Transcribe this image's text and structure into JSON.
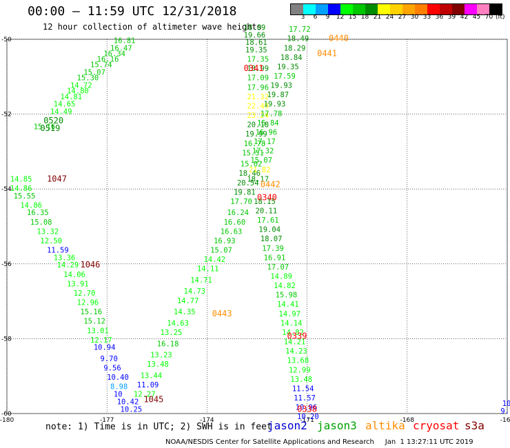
{
  "header": {
    "title": "00:00 – 11:59 UTC 12/31/2018",
    "subtitle": "12 hour collection of altimeter wave heights"
  },
  "color_scale": {
    "labels": [
      "3",
      "6",
      "9",
      "12",
      "15",
      "18",
      "21",
      "24",
      "27",
      "30",
      "33",
      "36",
      "39",
      "42",
      "45",
      "70"
    ],
    "unit": "(ft)",
    "colors": [
      "#808080",
      "#00ffff",
      "#00a0ff",
      "#0000ff",
      "#00ff00",
      "#00c800",
      "#008c00",
      "#ffff00",
      "#ffd200",
      "#ffa500",
      "#ff8000",
      "#ff0000",
      "#c00000",
      "#800000",
      "#ff00ff",
      "#ff80c0",
      "#000000"
    ]
  },
  "note": "note: 1) Time is in UTC; 2) SWH is in feet",
  "satellites": [
    {
      "name": "jason2",
      "color": "#0000cc"
    },
    {
      "name": "jason3",
      "color": "#00a000"
    },
    {
      "name": "altika",
      "color": "#ff8c00"
    },
    {
      "name": "cryosat",
      "color": "#ff0000"
    },
    {
      "name": "s3a",
      "color": "#800000"
    }
  ],
  "footer": "NOAA/NESDIS Center for Satellite Applications and Research     Jan  1 13:27:11 UTC 2019",
  "chart_data": {
    "type": "scatter",
    "title": "12 hour collection of altimeter wave heights",
    "xlabel": "",
    "ylabel": "",
    "xlim": [
      -180,
      -165
    ],
    "ylim": [
      -60,
      -50
    ],
    "xticks": [
      -180,
      -177,
      -174,
      -171,
      -168,
      -165
    ],
    "xtick_labels": [
      "-180",
      "-177",
      "-174",
      "-171",
      "-168",
      "-165"
    ],
    "yticks": [
      -50,
      -52,
      -54,
      -56,
      -58,
      -60
    ],
    "ytick_labels": [
      "-50",
      "-52",
      "-54",
      "-56",
      "-58",
      "-60"
    ],
    "grid": true,
    "time_labels": [
      {
        "text": "0520",
        "lon": -178.9,
        "lat": -52.25,
        "color": "#008c00"
      },
      {
        "text": "0519",
        "lon": -179.0,
        "lat": -52.45,
        "color": "#008c00"
      },
      {
        "text": "1047",
        "lon": -178.8,
        "lat": -53.8,
        "color": "#800000"
      },
      {
        "text": "1046",
        "lon": -177.8,
        "lat": -56.1,
        "color": "#800000"
      },
      {
        "text": "1045",
        "lon": -175.9,
        "lat": -59.7,
        "color": "#800000"
      },
      {
        "text": "0443",
        "lon": -173.85,
        "lat": -57.4,
        "color": "#ff8c00"
      },
      {
        "text": "0442",
        "lon": -172.4,
        "lat": -53.95,
        "color": "#ff8c00"
      },
      {
        "text": "0441",
        "lon": -170.7,
        "lat": -50.45,
        "color": "#ff8c00"
      },
      {
        "text": "0440",
        "lon": -170.35,
        "lat": -50.05,
        "color": "#ff8c00"
      },
      {
        "text": "0341",
        "lon": -172.9,
        "lat": -50.85,
        "color": "#ff0000"
      },
      {
        "text": "0340",
        "lon": -172.5,
        "lat": -54.3,
        "color": "#ff0000"
      },
      {
        "text": "0339",
        "lon": -171.6,
        "lat": -58.0,
        "color": "#ff0000"
      },
      {
        "text": "0338",
        "lon": -171.3,
        "lat": -59.95,
        "color": "#ff0000"
      }
    ],
    "series": [
      {
        "name": "track-nw",
        "points": [
          {
            "lon": -176.8,
            "lat": -50.1,
            "swh": 16.81
          },
          {
            "lon": -176.9,
            "lat": -50.3,
            "swh": 16.47
          },
          {
            "lon": -177.1,
            "lat": -50.45,
            "swh": 16.34
          },
          {
            "lon": -177.3,
            "lat": -50.6,
            "swh": 16.16
          },
          {
            "lon": -177.5,
            "lat": -50.75,
            "swh": 15.74
          },
          {
            "lon": -177.7,
            "lat": -50.95,
            "swh": 15.07
          },
          {
            "lon": -177.9,
            "lat": -51.1,
            "swh": 15.3
          },
          {
            "lon": -178.1,
            "lat": -51.3,
            "swh": 14.72
          },
          {
            "lon": -178.2,
            "lat": -51.45,
            "swh": 14.8
          },
          {
            "lon": -178.4,
            "lat": -51.6,
            "swh": 14.81
          },
          {
            "lon": -178.6,
            "lat": -51.8,
            "swh": 14.65
          },
          {
            "lon": -178.7,
            "lat": -52.0,
            "swh": 14.49
          },
          {
            "lon": -179.2,
            "lat": -52.4,
            "swh": 15.16
          }
        ]
      },
      {
        "name": "track-w",
        "points": [
          {
            "lon": -179.9,
            "lat": -53.8,
            "swh": 14.85
          },
          {
            "lon": -179.9,
            "lat": -54.05,
            "swh": 14.86
          },
          {
            "lon": -179.8,
            "lat": -54.25,
            "swh": 15.55
          },
          {
            "lon": -179.6,
            "lat": -54.5,
            "swh": 14.86
          },
          {
            "lon": -179.4,
            "lat": -54.7,
            "swh": 16.35
          },
          {
            "lon": -179.3,
            "lat": -54.95,
            "swh": 15.08
          },
          {
            "lon": -179.1,
            "lat": -55.2,
            "swh": 13.32
          },
          {
            "lon": -179.0,
            "lat": -55.45,
            "swh": 12.5
          },
          {
            "lon": -178.8,
            "lat": -55.7,
            "swh": 11.59
          },
          {
            "lon": -178.6,
            "lat": -55.9,
            "swh": 13.36
          },
          {
            "lon": -178.5,
            "lat": -56.1,
            "swh": 14.29
          },
          {
            "lon": -178.3,
            "lat": -56.35,
            "swh": 14.06
          },
          {
            "lon": -178.2,
            "lat": -56.6,
            "swh": 13.91
          },
          {
            "lon": -178.0,
            "lat": -56.85,
            "swh": 12.7
          },
          {
            "lon": -177.9,
            "lat": -57.1,
            "swh": 12.96
          },
          {
            "lon": -177.8,
            "lat": -57.35,
            "swh": 15.16
          },
          {
            "lon": -177.7,
            "lat": -57.6,
            "swh": 15.12
          },
          {
            "lon": -177.6,
            "lat": -57.85,
            "swh": 13.01
          },
          {
            "lon": -177.5,
            "lat": -58.1,
            "swh": 12.17
          },
          {
            "lon": -177.4,
            "lat": -58.3,
            "swh": 10.94
          },
          {
            "lon": -177.2,
            "lat": -58.6,
            "swh": 9.7
          },
          {
            "lon": -177.1,
            "lat": -58.85,
            "swh": 9.56
          },
          {
            "lon": -177.0,
            "lat": -59.1,
            "swh": 10.4
          },
          {
            "lon": -176.9,
            "lat": -59.35,
            "swh": 8.98
          },
          {
            "lon": -176.8,
            "lat": -59.55,
            "swh": 10.0
          },
          {
            "lon": -176.7,
            "lat": -59.75,
            "swh": 10.42
          },
          {
            "lon": -176.6,
            "lat": -59.95,
            "swh": 10.25
          }
        ]
      },
      {
        "name": "track-center-asc",
        "points": [
          {
            "lon": -176.2,
            "lat": -59.55,
            "swh": 12.27
          },
          {
            "lon": -176.1,
            "lat": -59.3,
            "swh": 11.09
          },
          {
            "lon": -176.0,
            "lat": -59.05,
            "swh": 13.44
          },
          {
            "lon": -175.8,
            "lat": -58.75,
            "swh": 13.48
          },
          {
            "lon": -175.7,
            "lat": -58.5,
            "swh": 13.23
          },
          {
            "lon": -175.5,
            "lat": -58.2,
            "swh": 16.18
          },
          {
            "lon": -175.4,
            "lat": -57.9,
            "swh": 13.25
          },
          {
            "lon": -175.2,
            "lat": -57.65,
            "swh": 14.63
          },
          {
            "lon": -175.0,
            "lat": -57.35,
            "swh": 14.35
          },
          {
            "lon": -174.9,
            "lat": -57.05,
            "swh": 14.77
          },
          {
            "lon": -174.7,
            "lat": -56.8,
            "swh": 14.73
          },
          {
            "lon": -174.5,
            "lat": -56.5,
            "swh": 14.71
          },
          {
            "lon": -174.3,
            "lat": -56.2,
            "swh": 14.11
          },
          {
            "lon": -174.1,
            "lat": -55.95,
            "swh": 14.42
          },
          {
            "lon": -173.9,
            "lat": -55.7,
            "swh": 15.07
          },
          {
            "lon": -173.8,
            "lat": -55.45,
            "swh": 16.93
          },
          {
            "lon": -173.6,
            "lat": -55.2,
            "swh": 16.63
          },
          {
            "lon": -173.5,
            "lat": -54.95,
            "swh": 16.6
          },
          {
            "lon": -173.4,
            "lat": -54.7,
            "swh": 16.24
          },
          {
            "lon": -173.3,
            "lat": -54.4,
            "swh": 17.7
          },
          {
            "lon": -173.2,
            "lat": -54.15,
            "swh": 19.81
          },
          {
            "lon": -173.1,
            "lat": -53.9,
            "swh": 20.54
          },
          {
            "lon": -173.05,
            "lat": -53.65,
            "swh": 18.46
          },
          {
            "lon": -173.0,
            "lat": -53.4,
            "swh": 15.02
          },
          {
            "lon": -172.95,
            "lat": -53.1,
            "swh": 15.51
          },
          {
            "lon": -172.9,
            "lat": -52.85,
            "swh": 16.78
          },
          {
            "lon": -172.85,
            "lat": -52.6,
            "swh": 19.99
          },
          {
            "lon": -172.8,
            "lat": -52.35,
            "swh": 20.18
          },
          {
            "lon": -172.8,
            "lat": -52.1,
            "swh": 23.24
          },
          {
            "lon": -172.8,
            "lat": -51.85,
            "swh": 22.49
          },
          {
            "lon": -172.8,
            "lat": -51.6,
            "swh": 21.32
          },
          {
            "lon": -172.8,
            "lat": -51.35,
            "swh": 17.96
          },
          {
            "lon": -172.8,
            "lat": -51.1,
            "swh": 17.09
          },
          {
            "lon": -172.8,
            "lat": -50.85,
            "swh": 18.99
          },
          {
            "lon": -172.8,
            "lat": -50.6,
            "swh": 17.35
          },
          {
            "lon": -172.85,
            "lat": -50.35,
            "swh": 19.35
          },
          {
            "lon": -172.85,
            "lat": -50.15,
            "swh": 18.61
          },
          {
            "lon": -172.9,
            "lat": -49.95,
            "swh": 19.66
          },
          {
            "lon": -172.9,
            "lat": -49.75,
            "swh": 18.09
          }
        ]
      },
      {
        "name": "track-center-desc",
        "points": [
          {
            "lon": -172.6,
            "lat": -54.4,
            "swh": 18.15
          },
          {
            "lon": -172.55,
            "lat": -54.65,
            "swh": 20.11
          },
          {
            "lon": -172.5,
            "lat": -54.9,
            "swh": 17.61
          },
          {
            "lon": -172.45,
            "lat": -55.15,
            "swh": 19.04
          },
          {
            "lon": -172.4,
            "lat": -55.4,
            "swh": 18.07
          },
          {
            "lon": -172.35,
            "lat": -55.65,
            "swh": 17.39
          },
          {
            "lon": -172.3,
            "lat": -55.9,
            "swh": 16.91
          },
          {
            "lon": -172.2,
            "lat": -56.15,
            "swh": 17.07
          },
          {
            "lon": -172.1,
            "lat": -56.4,
            "swh": 14.89
          },
          {
            "lon": -172.0,
            "lat": -56.65,
            "swh": 14.82
          },
          {
            "lon": -171.95,
            "lat": -56.9,
            "swh": 15.98
          },
          {
            "lon": -171.9,
            "lat": -57.15,
            "swh": 14.41
          },
          {
            "lon": -171.85,
            "lat": -57.4,
            "swh": 14.97
          },
          {
            "lon": -171.8,
            "lat": -57.65,
            "swh": 14.14
          },
          {
            "lon": -171.75,
            "lat": -57.9,
            "swh": 14.82
          },
          {
            "lon": -171.7,
            "lat": -58.15,
            "swh": 14.21
          },
          {
            "lon": -171.65,
            "lat": -58.4,
            "swh": 14.23
          },
          {
            "lon": -171.6,
            "lat": -58.65,
            "swh": 13.68
          },
          {
            "lon": -171.55,
            "lat": -58.9,
            "swh": 12.99
          },
          {
            "lon": -171.5,
            "lat": -59.15,
            "swh": 13.48
          },
          {
            "lon": -171.45,
            "lat": -59.4,
            "swh": 11.54
          },
          {
            "lon": -171.4,
            "lat": -59.65,
            "swh": 11.57
          },
          {
            "lon": -171.35,
            "lat": -59.9,
            "swh": 10.96
          },
          {
            "lon": -171.3,
            "lat": -60.15,
            "swh": 10.2
          },
          {
            "lon": -171.25,
            "lat": -60.4,
            "swh": 10.81
          }
        ]
      },
      {
        "name": "track-east",
        "points": [
          {
            "lon": -171.55,
            "lat": -49.8,
            "swh": 17.72
          },
          {
            "lon": -171.6,
            "lat": -50.05,
            "swh": 18.49
          },
          {
            "lon": -171.7,
            "lat": -50.3,
            "swh": 18.29
          },
          {
            "lon": -171.8,
            "lat": -50.55,
            "swh": 18.84
          },
          {
            "lon": -171.9,
            "lat": -50.8,
            "swh": 19.35
          },
          {
            "lon": -172.0,
            "lat": -51.05,
            "swh": 17.59
          },
          {
            "lon": -172.1,
            "lat": -51.3,
            "swh": 19.93
          },
          {
            "lon": -172.2,
            "lat": -51.55,
            "swh": 19.87
          },
          {
            "lon": -172.3,
            "lat": -51.8,
            "swh": 19.93
          },
          {
            "lon": -172.4,
            "lat": -52.05,
            "swh": 17.78
          },
          {
            "lon": -172.5,
            "lat": -52.3,
            "swh": 15.84
          },
          {
            "lon": -172.55,
            "lat": -52.55,
            "swh": 16.96
          },
          {
            "lon": -172.6,
            "lat": -52.8,
            "swh": 17.17
          },
          {
            "lon": -172.65,
            "lat": -53.05,
            "swh": 17.32
          },
          {
            "lon": -172.7,
            "lat": -53.3,
            "swh": 15.07
          },
          {
            "lon": -172.75,
            "lat": -53.55,
            "swh": 21.82
          },
          {
            "lon": -172.8,
            "lat": -53.8,
            "swh": 18.17
          }
        ]
      },
      {
        "name": "track-far-east",
        "points": [
          {
            "lon": -165.15,
            "lat": -59.8,
            "swh": 10
          },
          {
            "lon": -165.2,
            "lat": -60.0,
            "swh": 9.77
          }
        ]
      }
    ]
  }
}
